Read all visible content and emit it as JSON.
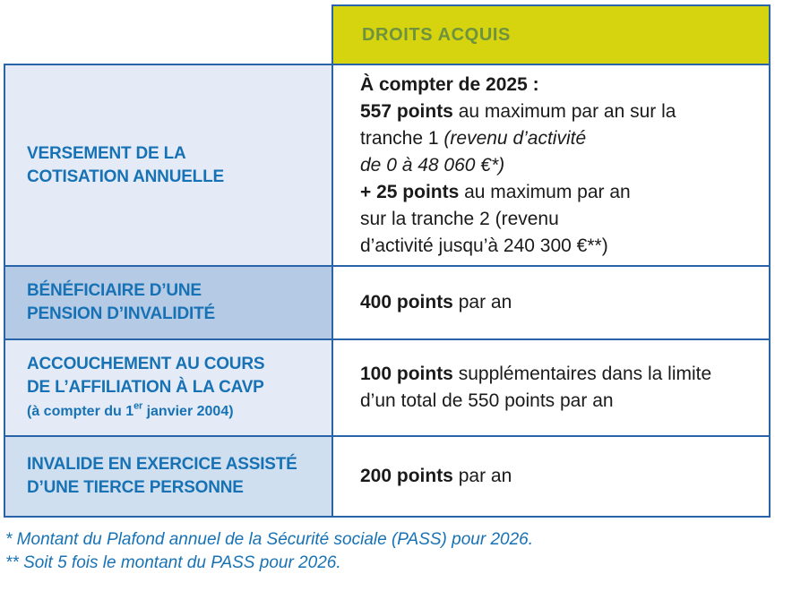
{
  "colors": {
    "header_bg": "#d5d40f",
    "header_text": "#6f923e",
    "border_blue": "#2a64a8",
    "label_text_blue": "#1772b5",
    "row_bg_light": "#e4ebf6",
    "row_bg_medium": "#b5cae4",
    "row_bg_soft": "#cfdfef",
    "body_text": "#1a1a1a",
    "footnote_blue": "#1772b5"
  },
  "table": {
    "header_label": "DROITS ACQUIS",
    "rows": [
      {
        "id": "versement-cotisation-annuelle",
        "label_segments": [
          {
            "t": "VERSEMENT DE LA"
          },
          {
            "br": true
          },
          {
            "t": "COTISATION ANNUELLE"
          }
        ],
        "value_segments": [
          {
            "t": "À compter de 2025 :",
            "b": true
          },
          {
            "br": true
          },
          {
            "t": "557 points",
            "b": true
          },
          {
            "t": " au maximum par an sur la"
          },
          {
            "br": true
          },
          {
            "t": "tranche 1 "
          },
          {
            "t": "(revenu d’activité",
            "i": true
          },
          {
            "br": true
          },
          {
            "t": "de 0 à 48 060 €*)",
            "i": true
          },
          {
            "br": true
          },
          {
            "t": "+ 25 points",
            "b": true
          },
          {
            "t": " au maximum par an"
          },
          {
            "br": true
          },
          {
            "t": "sur la tranche 2 (revenu"
          },
          {
            "br": true
          },
          {
            "t": "d’activité jusqu’à 240 300 €**)"
          }
        ]
      },
      {
        "id": "pension-invalidite",
        "label_segments": [
          {
            "t": "BÉNÉFICIAIRE D’UNE"
          },
          {
            "br": true
          },
          {
            "t": "PENSION D’INVALIDITÉ"
          }
        ],
        "value_segments": [
          {
            "t": "400 points",
            "b": true
          },
          {
            "t": " par an"
          }
        ]
      },
      {
        "id": "accouchement-affiliation-cavp",
        "label_segments": [
          {
            "t": "ACCOUCHEMENT AU COURS"
          },
          {
            "br": true
          },
          {
            "t": "DE L’AFFILIATION À LA CAVP"
          },
          {
            "br": true
          },
          {
            "t": "(à compter du 1",
            "small": true
          },
          {
            "t": "er",
            "sup": true
          },
          {
            "t": " janvier 2004)",
            "small": true
          }
        ],
        "value_segments": [
          {
            "t": "100 points",
            "b": true
          },
          {
            "t": " supplémentaires dans la limite"
          },
          {
            "br": true
          },
          {
            "t": "d’un total de 550 points par an"
          }
        ]
      },
      {
        "id": "invalide-tierce-personne",
        "label_segments": [
          {
            "t": "INVALIDE EN EXERCICE ASSISTÉ"
          },
          {
            "br": true
          },
          {
            "t": "D’UNE TIERCE PERSONNE"
          }
        ],
        "value_segments": [
          {
            "t": "200 points",
            "b": true
          },
          {
            "t": " par an"
          }
        ]
      }
    ]
  },
  "footnotes": [
    "* Montant du Plafond annuel de la Sécurité sociale (PASS) pour 2026.",
    "** Soit 5 fois le montant du PASS pour 2026."
  ]
}
